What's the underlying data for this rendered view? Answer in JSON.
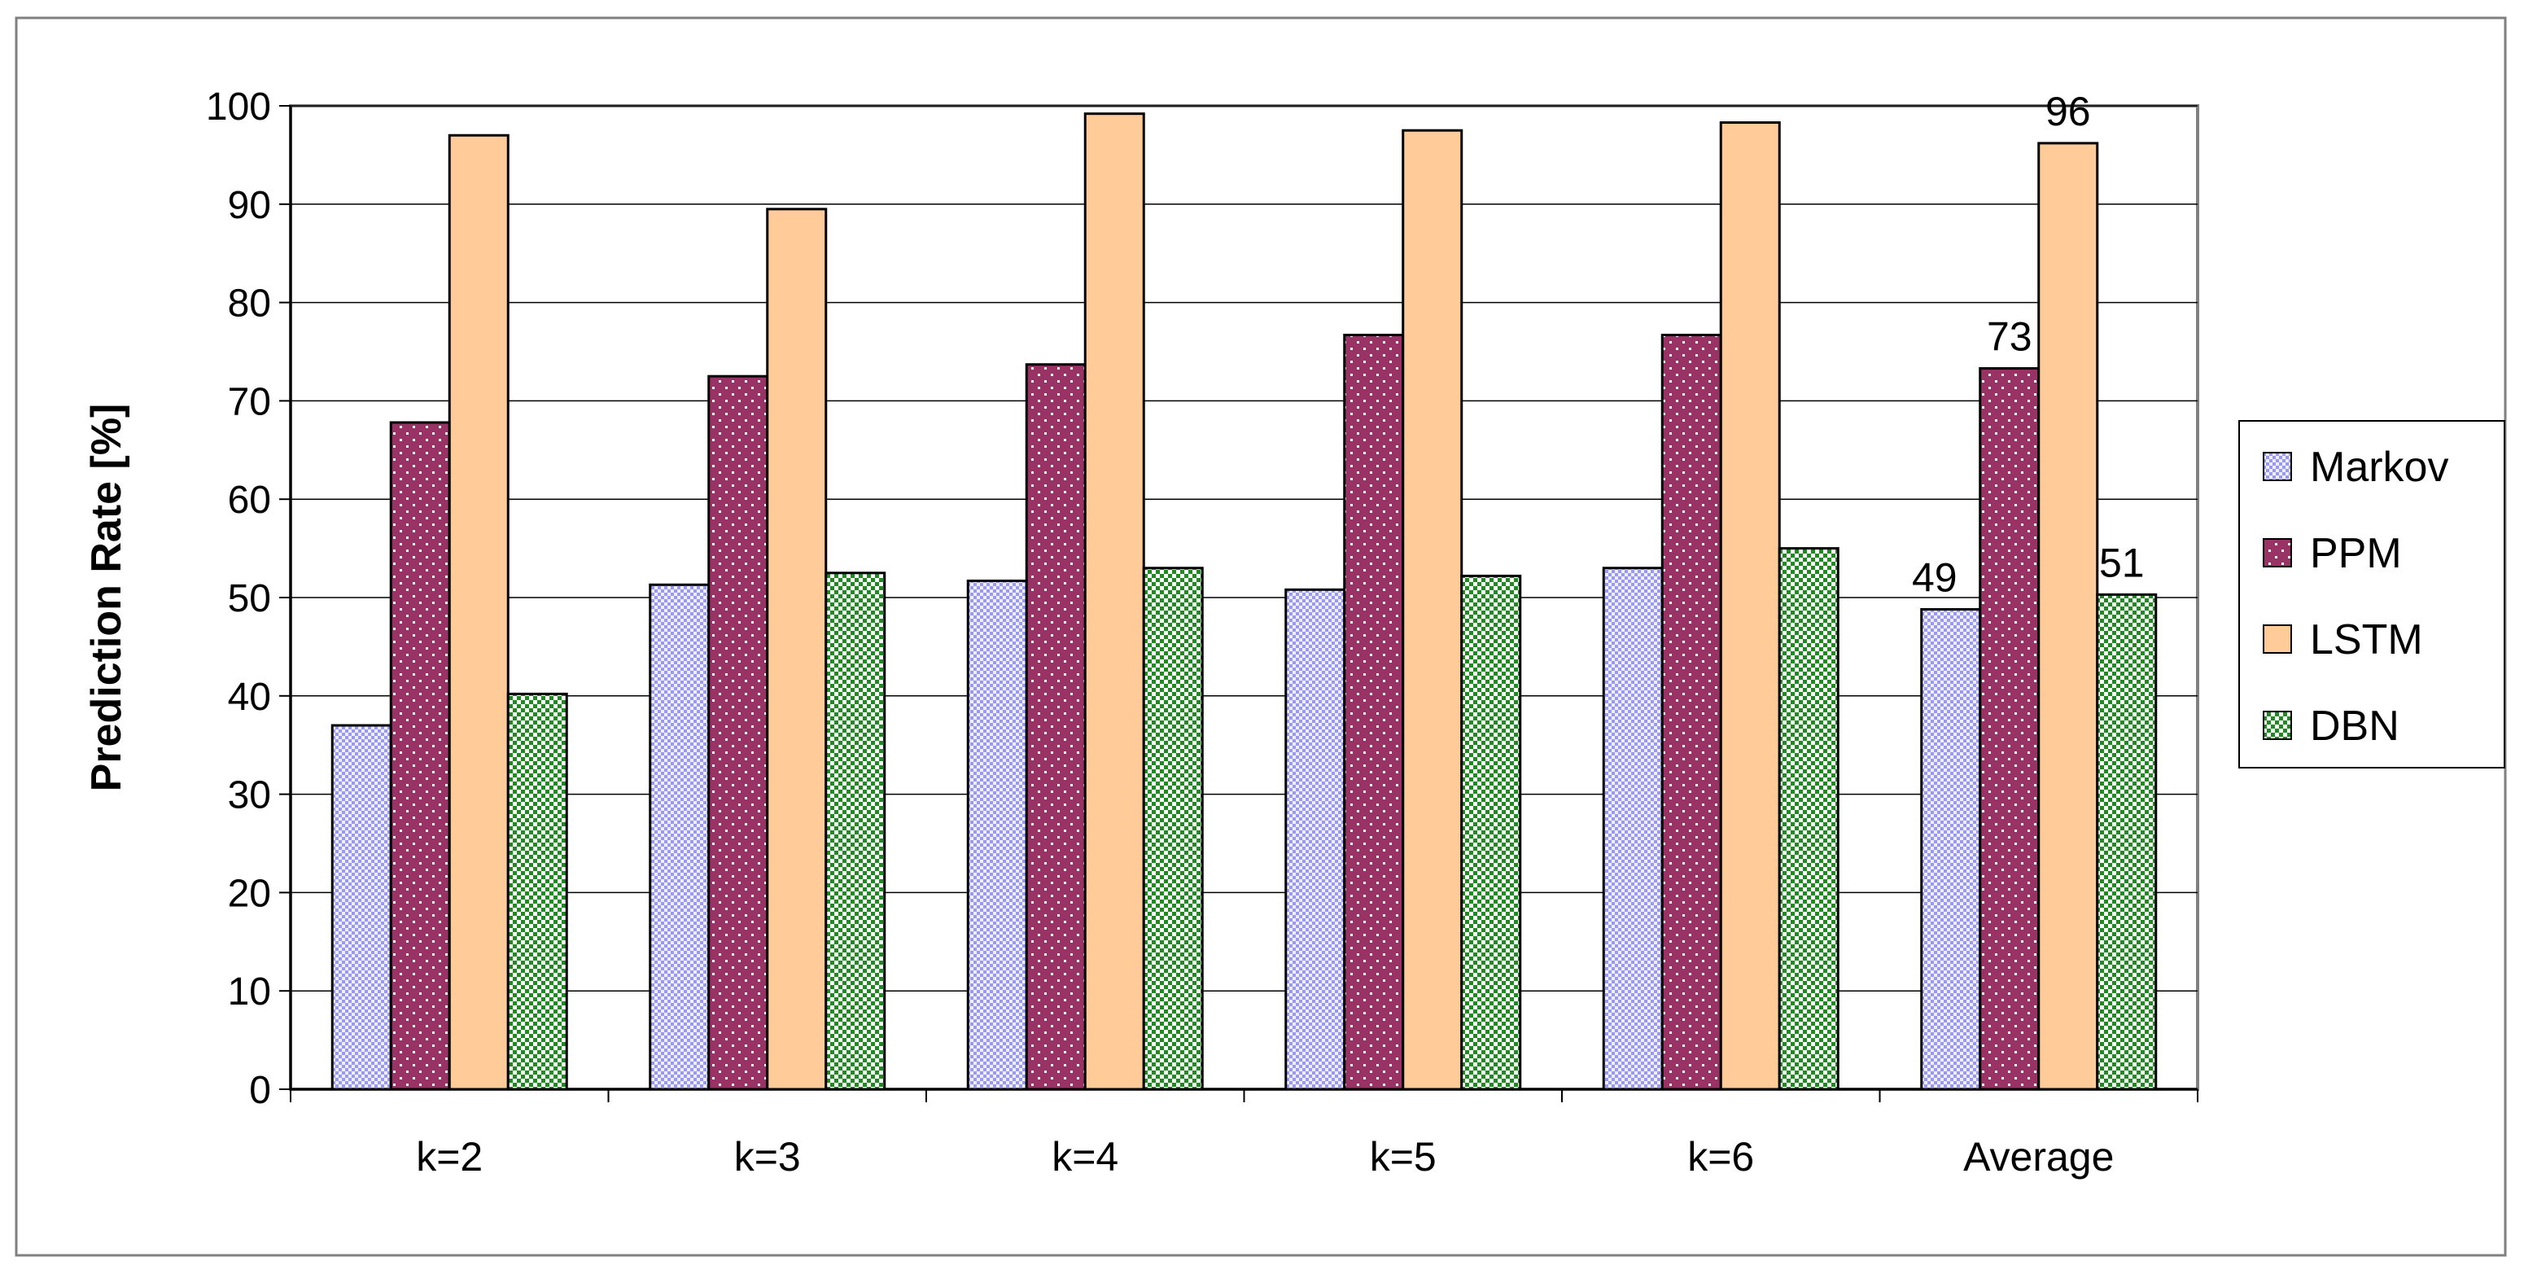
{
  "chart_data": {
    "type": "bar",
    "title": "",
    "xlabel": "",
    "ylabel": "Prediction Rate [%]",
    "categories": [
      "k=2",
      "k=3",
      "k=4",
      "k=5",
      "k=6",
      "Average"
    ],
    "ylim": [
      0,
      100
    ],
    "yticks": [
      0,
      10,
      20,
      30,
      40,
      50,
      60,
      70,
      80,
      90,
      100
    ],
    "grid": true,
    "legend_position": "right",
    "series": [
      {
        "name": "Markov",
        "values": [
          37,
          51.3,
          51.7,
          50.8,
          53,
          48.8
        ],
        "color": "#ccccff",
        "pattern": "checker"
      },
      {
        "name": "PPM",
        "values": [
          67.8,
          72.5,
          73.7,
          76.7,
          76.7,
          73.3
        ],
        "color": "#993366",
        "pattern": "dots"
      },
      {
        "name": "LSTM",
        "values": [
          97,
          89.5,
          99.2,
          97.5,
          98.3,
          96.2
        ],
        "color": "#ffcc99",
        "pattern": "solid"
      },
      {
        "name": "DBN",
        "values": [
          40.2,
          52.5,
          53,
          52.2,
          55,
          50.3
        ],
        "color": "#339933",
        "pattern": "checker-dense"
      }
    ],
    "data_labels": [
      {
        "series": "Markov",
        "category": "Average",
        "text": "49"
      },
      {
        "series": "PPM",
        "category": "Average",
        "text": "73"
      },
      {
        "series": "LSTM",
        "category": "Average",
        "text": "96"
      },
      {
        "series": "DBN",
        "category": "Average",
        "text": "51"
      }
    ]
  }
}
